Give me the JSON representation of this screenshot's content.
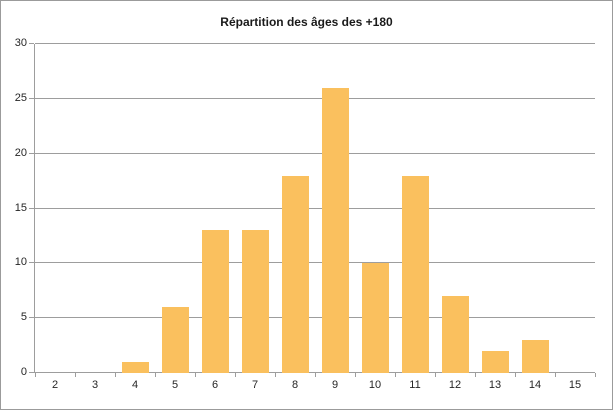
{
  "window": {
    "background": "#ffffff",
    "border_color": "#9b9b9b"
  },
  "chart_data": {
    "type": "bar",
    "title": "Répartition des âges des +180",
    "categories": [
      "2",
      "3",
      "4",
      "5",
      "6",
      "7",
      "8",
      "9",
      "10",
      "11",
      "12",
      "13",
      "14",
      "15"
    ],
    "values": [
      0,
      0,
      1,
      6,
      13,
      13,
      18,
      26,
      10,
      18,
      7,
      2,
      3,
      0
    ],
    "xlabel": "",
    "ylabel": "",
    "ylim": [
      0,
      30
    ],
    "yticks": [
      0,
      5,
      10,
      15,
      20,
      25,
      30
    ],
    "grid": true,
    "legend": "none",
    "bar_color": "#fac05e",
    "grid_color": "#9d9d9d",
    "axis_text_color": "#262626",
    "title_color": "#1a1a1a"
  }
}
